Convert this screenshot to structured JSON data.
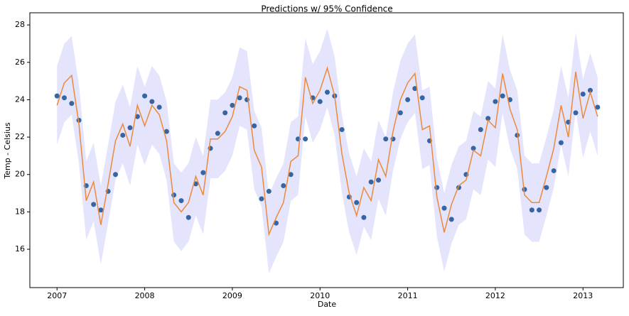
{
  "chart_data": {
    "type": "line",
    "title": "Predictions w/ 95% Confidence",
    "x_label": "Date",
    "y_label": "Temp - Celsius",
    "x": [
      2007,
      2007.083,
      2007.167,
      2007.25,
      2007.333,
      2007.417,
      2007.5,
      2007.583,
      2007.667,
      2007.75,
      2007.833,
      2007.917,
      2008,
      2008.083,
      2008.167,
      2008.25,
      2008.333,
      2008.417,
      2008.5,
      2008.583,
      2008.667,
      2008.75,
      2008.833,
      2008.917,
      2009,
      2009.083,
      2009.167,
      2009.25,
      2009.333,
      2009.417,
      2009.5,
      2009.583,
      2009.667,
      2009.75,
      2009.833,
      2009.917,
      2010,
      2010.083,
      2010.167,
      2010.25,
      2010.333,
      2010.417,
      2010.5,
      2010.583,
      2010.667,
      2010.75,
      2010.833,
      2010.917,
      2011,
      2011.083,
      2011.167,
      2011.25,
      2011.333,
      2011.417,
      2011.5,
      2011.583,
      2011.667,
      2011.75,
      2011.833,
      2011.917,
      2012,
      2012.083,
      2012.167,
      2012.25,
      2012.333,
      2012.417,
      2012.5,
      2012.583,
      2012.667,
      2012.75,
      2012.833,
      2012.917,
      2013,
      2013.083,
      2013.167
    ],
    "band": {
      "color": "#e4e4fc",
      "upper": [
        25.8,
        27.0,
        27.4,
        24.8,
        20.7,
        21.7,
        19.4,
        21.6,
        23.9,
        24.8,
        23.6,
        25.8,
        24.7,
        25.8,
        25.3,
        23.9,
        20.6,
        20.1,
        20.6,
        22.0,
        21.0,
        24.0,
        24.0,
        24.4,
        25.2,
        26.8,
        26.6,
        23.4,
        22.5,
        18.9,
        19.8,
        20.6,
        22.8,
        23.1,
        27.3,
        25.9,
        26.6,
        27.8,
        26.3,
        23.2,
        21.1,
        19.9,
        21.4,
        20.7,
        22.9,
        22.0,
        24.4,
        26.1,
        27.0,
        27.5,
        24.5,
        24.7,
        20.9,
        19.0,
        20.5,
        21.5,
        21.8,
        23.4,
        23.1,
        25.0,
        24.6,
        27.5,
        25.6,
        24.5,
        21.0,
        20.6,
        20.6,
        22.0,
        23.5,
        25.8,
        24.1,
        27.6,
        25.1,
        26.5,
        25.2
      ],
      "lower": [
        21.6,
        22.8,
        23.2,
        20.6,
        16.5,
        17.5,
        15.2,
        17.4,
        19.7,
        20.6,
        19.4,
        21.6,
        20.5,
        21.6,
        21.1,
        19.7,
        16.4,
        15.9,
        16.4,
        17.8,
        16.8,
        19.8,
        19.8,
        20.2,
        21.0,
        22.6,
        22.4,
        19.2,
        18.3,
        14.7,
        15.6,
        16.4,
        18.6,
        18.9,
        23.1,
        21.7,
        22.4,
        23.6,
        22.1,
        19.0,
        16.9,
        15.7,
        17.2,
        16.5,
        18.7,
        17.8,
        20.2,
        21.9,
        22.8,
        23.3,
        20.3,
        20.5,
        16.7,
        14.8,
        16.3,
        17.3,
        17.6,
        19.2,
        18.9,
        20.8,
        20.4,
        23.3,
        21.4,
        20.3,
        16.8,
        16.4,
        16.4,
        17.8,
        19.3,
        21.6,
        19.9,
        23.4,
        20.9,
        22.3,
        21.0
      ]
    },
    "series": [
      {
        "kind": "scatter",
        "color": "#3566a3",
        "values": [
          24.2,
          24.1,
          23.8,
          22.9,
          19.4,
          18.4,
          18.1,
          19.1,
          20.0,
          22.1,
          22.5,
          23.1,
          24.2,
          23.9,
          23.6,
          22.3,
          18.9,
          18.6,
          17.7,
          19.5,
          20.1,
          21.4,
          22.2,
          23.3,
          23.7,
          24.1,
          24.0,
          22.6,
          18.7,
          19.1,
          17.4,
          19.4,
          20.0,
          21.9,
          21.9,
          24.1,
          23.9,
          24.4,
          24.2,
          22.4,
          18.8,
          18.5,
          17.7,
          19.6,
          19.7,
          21.9,
          21.9,
          23.3,
          24.0,
          24.6,
          24.1,
          21.8,
          19.3,
          18.2,
          17.6,
          19.3,
          20.0,
          21.4,
          22.4,
          23.0,
          23.9,
          24.2,
          24.0,
          22.1,
          19.2,
          18.1,
          18.1,
          19.3,
          20.2,
          21.7,
          22.8,
          23.3,
          24.3,
          24.5,
          23.6
        ]
      },
      {
        "kind": "line",
        "color": "#ec8a3c",
        "values": [
          23.7,
          24.9,
          25.3,
          22.7,
          18.6,
          19.6,
          17.3,
          19.5,
          21.8,
          22.7,
          21.5,
          23.7,
          22.6,
          23.7,
          23.2,
          21.8,
          18.5,
          18.0,
          18.5,
          19.9,
          18.9,
          21.9,
          21.9,
          22.3,
          23.1,
          24.7,
          24.5,
          21.3,
          20.4,
          16.8,
          17.7,
          18.5,
          20.7,
          21.0,
          25.2,
          23.8,
          24.5,
          25.7,
          24.2,
          21.1,
          19.0,
          17.8,
          19.3,
          18.6,
          20.8,
          19.9,
          22.3,
          24.0,
          24.9,
          25.4,
          22.4,
          22.6,
          18.8,
          16.9,
          18.4,
          19.4,
          19.7,
          21.3,
          21.0,
          22.9,
          22.5,
          25.4,
          23.5,
          22.4,
          18.9,
          18.5,
          18.5,
          19.9,
          21.4,
          23.7,
          22.0,
          25.5,
          23.0,
          24.4,
          23.1
        ]
      }
    ],
    "xlim": [
      2006.69,
      2013.46
    ],
    "xticks": [
      2007,
      2008,
      2009,
      2010,
      2011,
      2012,
      2013
    ],
    "ylim": [
      13.95,
      28.65
    ],
    "yticks": [
      16,
      18,
      20,
      22,
      24,
      26,
      28
    ],
    "grid": false
  }
}
